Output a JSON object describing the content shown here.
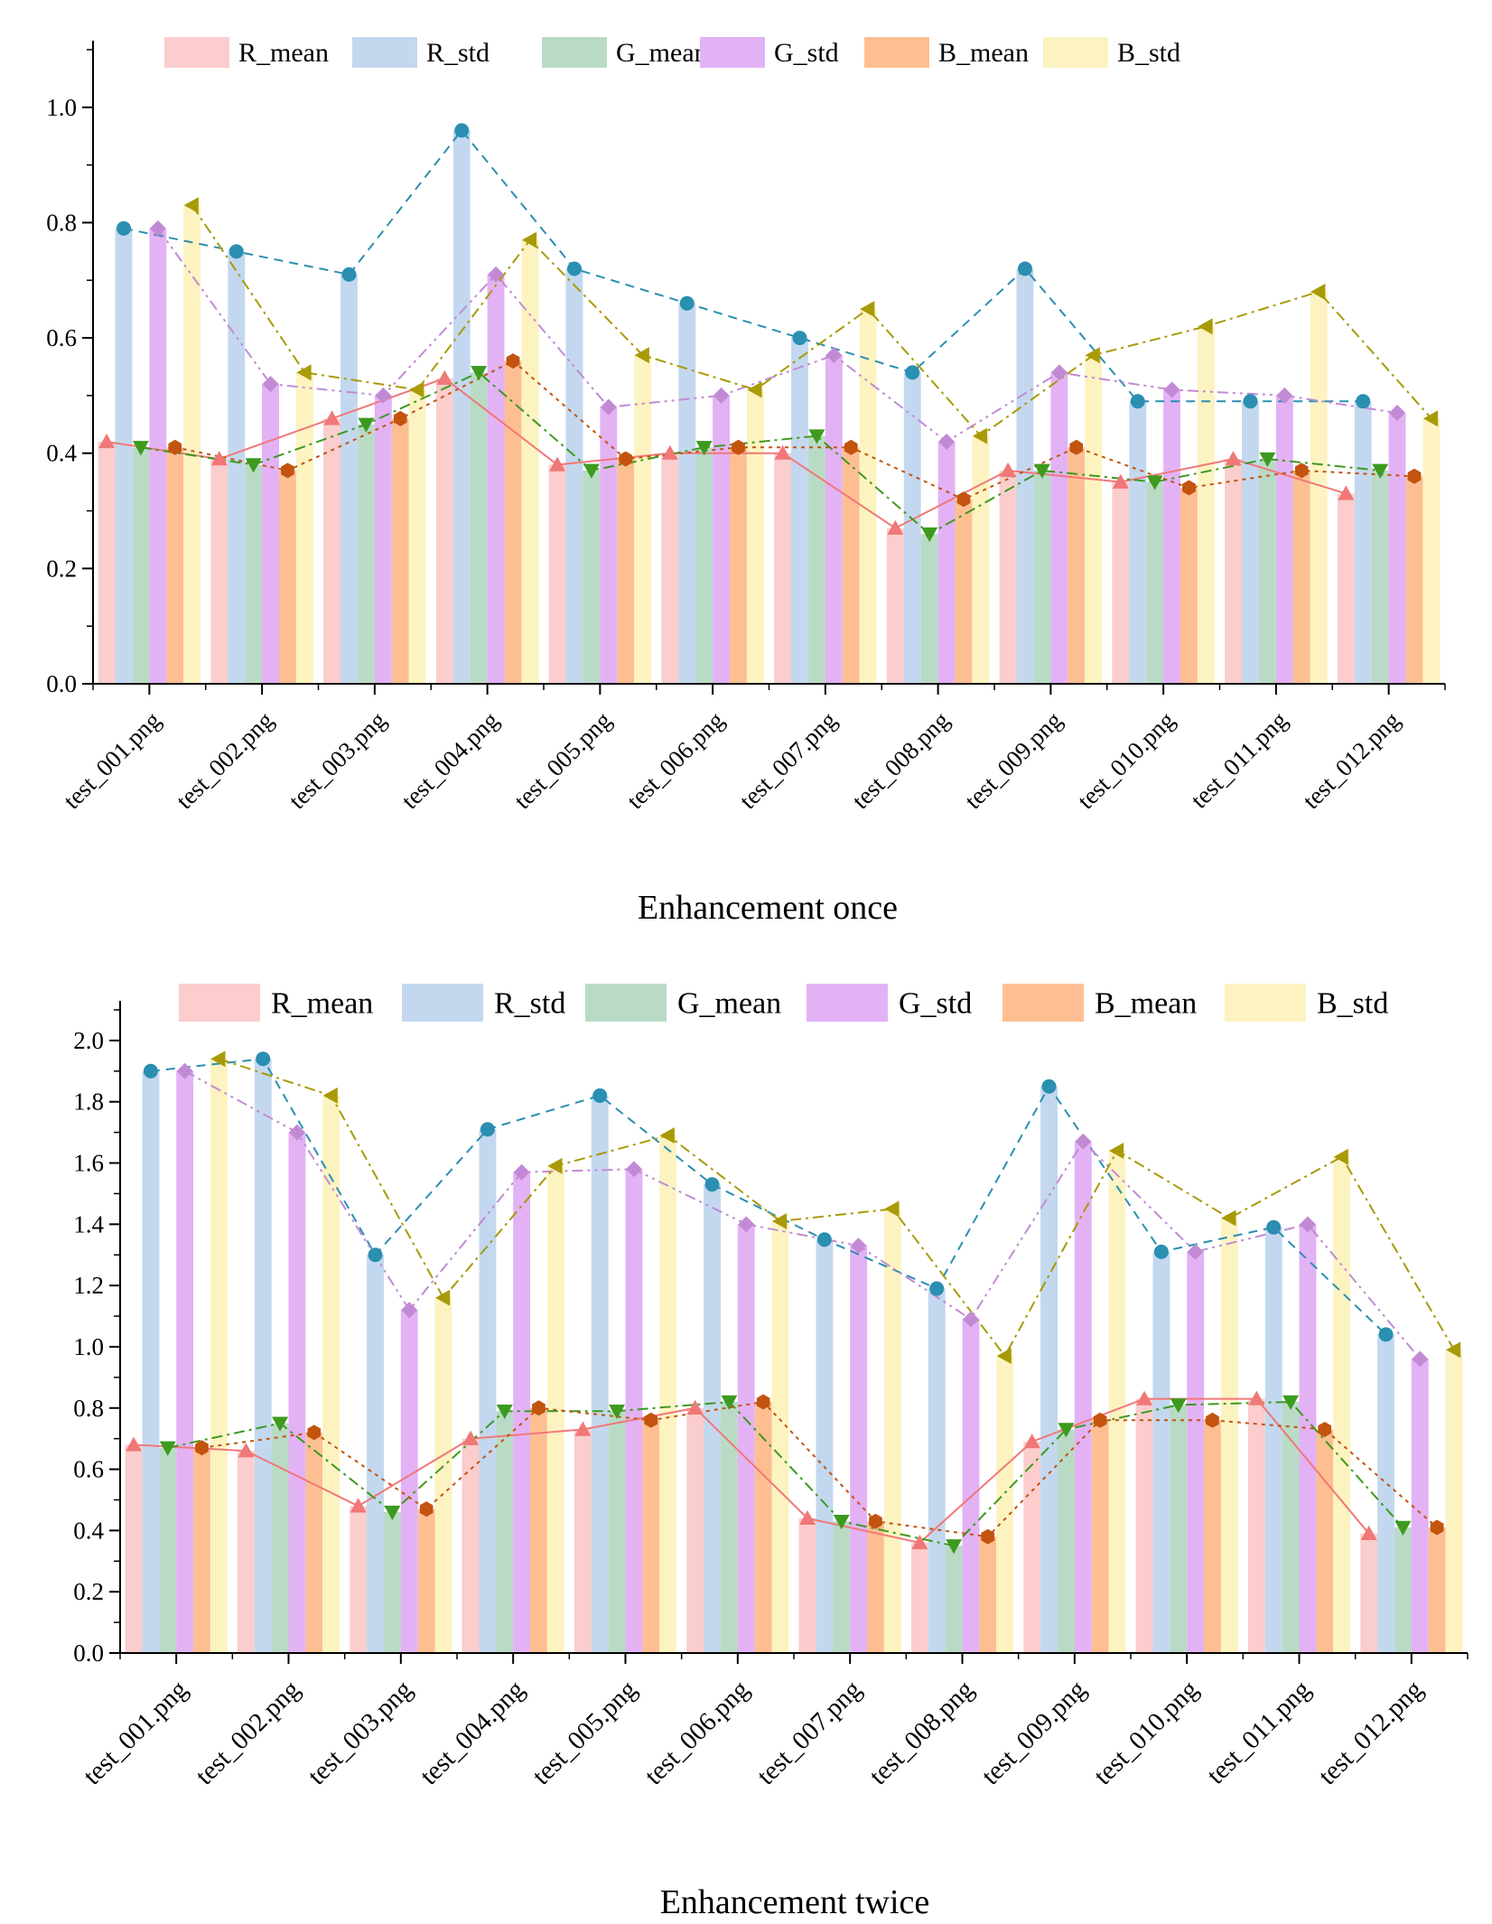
{
  "chart_data": [
    {
      "type": "bar",
      "title": "Enhancement once",
      "xlabel": "",
      "ylabel": "",
      "ylim": [
        0,
        1.1
      ],
      "yticks": [
        "0.0",
        "0.2",
        "0.4",
        "0.6",
        "0.8",
        "1.0"
      ],
      "grid": false,
      "legend_position": "top",
      "categories": [
        "test_001.png",
        "test_002.png",
        "test_003.png",
        "test_004.png",
        "test_005.png",
        "test_006.png",
        "test_007.png",
        "test_008.png",
        "test_009.png",
        "test_010.png",
        "test_011.png",
        "test_012.png"
      ],
      "series": [
        {
          "name": "R_mean",
          "bar_color": "#fbcdcd",
          "line_color": "#f07878",
          "marker": "triangle-up",
          "dash": "solid",
          "values": [
            0.42,
            0.39,
            0.46,
            0.53,
            0.38,
            0.4,
            0.4,
            0.27,
            0.37,
            0.35,
            0.39,
            0.33
          ]
        },
        {
          "name": "R_std",
          "bar_color": "#c3d8ef",
          "line_color": "#2a8fb1",
          "marker": "circle",
          "dash": "dash",
          "values": [
            0.79,
            0.75,
            0.71,
            0.96,
            0.72,
            0.66,
            0.6,
            0.54,
            0.72,
            0.49,
            0.49,
            0.49
          ]
        },
        {
          "name": "G_mean",
          "bar_color": "#b9dbc6",
          "line_color": "#3d9a1f",
          "marker": "triangle-down",
          "dash": "dashdot",
          "values": [
            0.41,
            0.38,
            0.45,
            0.54,
            0.37,
            0.41,
            0.43,
            0.26,
            0.37,
            0.35,
            0.39,
            0.37
          ]
        },
        {
          "name": "G_std",
          "bar_color": "#e3b2f5",
          "line_color": "#c28ad4",
          "marker": "diamond",
          "dash": "dashdotdot",
          "values": [
            0.79,
            0.52,
            0.5,
            0.71,
            0.48,
            0.5,
            0.57,
            0.42,
            0.54,
            0.51,
            0.5,
            0.47
          ]
        },
        {
          "name": "B_mean",
          "bar_color": "#fdbf92",
          "line_color": "#c2540f",
          "marker": "hexagon",
          "dash": "dot",
          "values": [
            0.41,
            0.37,
            0.46,
            0.56,
            0.39,
            0.41,
            0.41,
            0.32,
            0.41,
            0.34,
            0.37,
            0.36
          ]
        },
        {
          "name": "B_std",
          "bar_color": "#fcf3c1",
          "line_color": "#a99a07",
          "marker": "triangle-left",
          "dash": "dashdot",
          "values": [
            0.83,
            0.54,
            0.51,
            0.77,
            0.57,
            0.51,
            0.65,
            0.43,
            0.57,
            0.62,
            0.68,
            0.46
          ]
        }
      ]
    },
    {
      "type": "bar",
      "title": "Enhancement twice",
      "xlabel": "",
      "ylabel": "",
      "ylim": [
        0,
        2.1
      ],
      "yticks": [
        "0.0",
        "0.2",
        "0.4",
        "0.6",
        "0.8",
        "1.0",
        "1.2",
        "1.4",
        "1.6",
        "1.8",
        "2.0"
      ],
      "grid": false,
      "legend_position": "top",
      "categories": [
        "test_001.png",
        "test_002.png",
        "test_003.png",
        "test_004.png",
        "test_005.png",
        "test_006.png",
        "test_007.png",
        "test_008.png",
        "test_009.png",
        "test_010.png",
        "test_011.png",
        "test_012.png"
      ],
      "series": [
        {
          "name": "R_mean",
          "bar_color": "#fbcdcd",
          "line_color": "#f07878",
          "marker": "triangle-up",
          "dash": "solid",
          "values": [
            0.68,
            0.66,
            0.48,
            0.7,
            0.73,
            0.8,
            0.44,
            0.36,
            0.69,
            0.83,
            0.83,
            0.39
          ]
        },
        {
          "name": "R_std",
          "bar_color": "#c3d8ef",
          "line_color": "#2a8fb1",
          "marker": "circle",
          "dash": "dash",
          "values": [
            1.9,
            1.94,
            1.3,
            1.71,
            1.82,
            1.53,
            1.35,
            1.19,
            1.85,
            1.31,
            1.39,
            1.04
          ]
        },
        {
          "name": "G_mean",
          "bar_color": "#b9dbc6",
          "line_color": "#3d9a1f",
          "marker": "triangle-down",
          "dash": "dashdot",
          "values": [
            0.67,
            0.75,
            0.46,
            0.79,
            0.79,
            0.82,
            0.43,
            0.35,
            0.73,
            0.81,
            0.82,
            0.41
          ]
        },
        {
          "name": "G_std",
          "bar_color": "#e3b2f5",
          "line_color": "#c28ad4",
          "marker": "diamond",
          "dash": "dashdotdot",
          "values": [
            1.9,
            1.7,
            1.12,
            1.57,
            1.58,
            1.4,
            1.33,
            1.09,
            1.67,
            1.31,
            1.4,
            0.96
          ]
        },
        {
          "name": "B_mean",
          "bar_color": "#fdbf92",
          "line_color": "#c2540f",
          "marker": "hexagon",
          "dash": "dot",
          "values": [
            0.67,
            0.72,
            0.47,
            0.8,
            0.76,
            0.82,
            0.43,
            0.38,
            0.76,
            0.76,
            0.73,
            0.41
          ]
        },
        {
          "name": "B_std",
          "bar_color": "#fcf3c1",
          "line_color": "#a99a07",
          "marker": "triangle-left",
          "dash": "dashdot",
          "values": [
            1.94,
            1.82,
            1.16,
            1.59,
            1.69,
            1.41,
            1.45,
            0.97,
            1.64,
            1.42,
            1.62,
            0.99
          ]
        }
      ]
    }
  ]
}
